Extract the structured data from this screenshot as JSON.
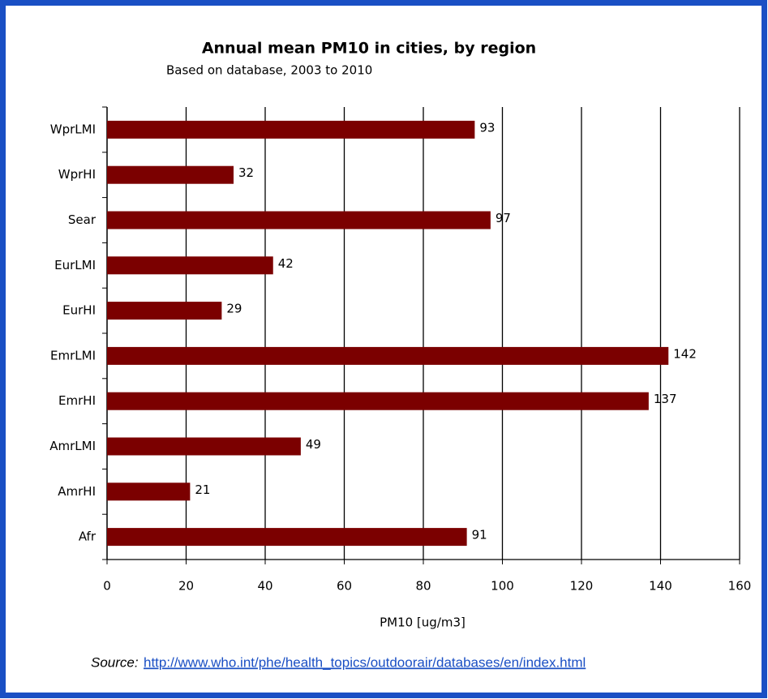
{
  "chart_data": {
    "type": "barh",
    "title": "Annual mean PM10 in cities, by region",
    "subtitle": "Based on database, 2003 to 2010",
    "x_label": "PM10 [ug/m3]",
    "categories": [
      "WprLMI",
      "WprHI",
      "Sear",
      "EurLMI",
      "EurHI",
      "EmrLMI",
      "EmrHI",
      "AmrLMI",
      "AmrHI",
      "Afr"
    ],
    "values": [
      93,
      32,
      97,
      42,
      29,
      142,
      137,
      49,
      21,
      91
    ],
    "color": "#7b0000",
    "xlim": [
      0,
      160
    ],
    "xticks": [
      0,
      20,
      40,
      60,
      80,
      100,
      120,
      140,
      160
    ],
    "grid": true,
    "source_label": "Source:",
    "source_url": "http://www.who.int/phe/health_topics/outdoorair/databases/en/index.html"
  }
}
